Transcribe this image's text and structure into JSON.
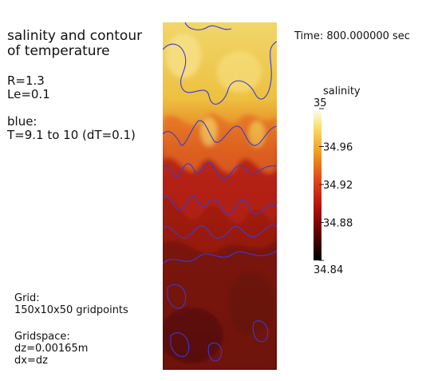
{
  "caption": {
    "title_line1": "salinity and contour",
    "title_line2": "of temperature",
    "param_r": "R=1.3",
    "param_le": "Le=0.1",
    "contour_label": "blue:",
    "contour_range": "T=9.1 to 10 (dT=0.1)"
  },
  "time_label": "Time: 800.000000 sec",
  "grid": {
    "label": "Grid:",
    "points": "150x10x50 gridpoints",
    "space_label": "Gridspace:",
    "dz": "dz=0.00165m",
    "dx": "dx=dz"
  },
  "colorbar": {
    "title": "salinity",
    "ticks": [
      "35",
      "34.96",
      "34.92",
      "34.88",
      "34.84"
    ],
    "tick_values": [
      35,
      34.96,
      34.92,
      34.88,
      34.84
    ],
    "min": 34.84,
    "max": 35,
    "colormap": [
      "#000000",
      "#5a0000",
      "#b01010",
      "#e0501a",
      "#f0a020",
      "#f8e070",
      "#ffffff"
    ]
  },
  "field": {
    "contour_color": "#3a3ad8"
  }
}
